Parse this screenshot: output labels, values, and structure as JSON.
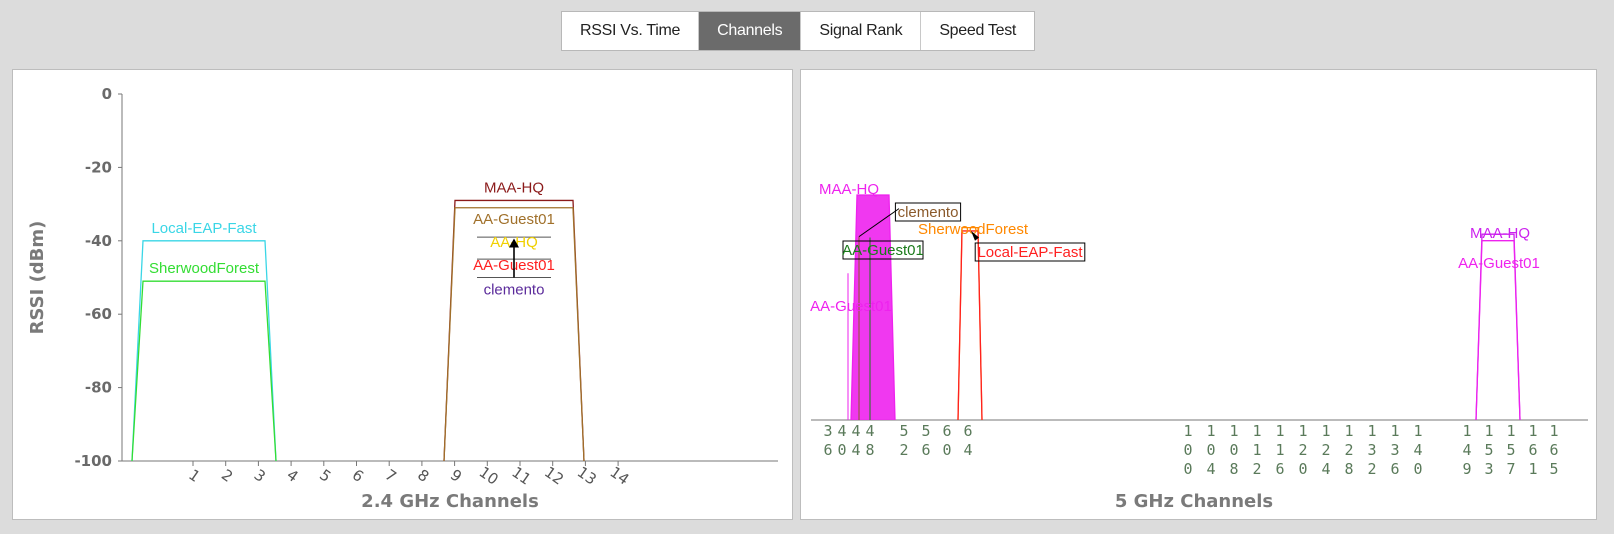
{
  "tabs": [
    {
      "label": "RSSI Vs. Time",
      "active": false
    },
    {
      "label": "Channels",
      "active": true
    },
    {
      "label": "Signal Rank",
      "active": false
    },
    {
      "label": "Speed Test",
      "active": false
    }
  ],
  "chart_data": [
    {
      "type": "area",
      "xlabel": "2.4 GHz Channels",
      "ylabel": "RSSI (dBm)",
      "ylim": [
        -100,
        0
      ],
      "y_ticks": [
        0,
        -20,
        -40,
        -60,
        -80,
        -100
      ],
      "x_ticks": [
        "1",
        "2",
        "3",
        "4",
        "5",
        "6",
        "7",
        "8",
        "9",
        "10",
        "11",
        "12",
        "13",
        "14"
      ],
      "networks": [
        {
          "name": "Local-EAP-Fast",
          "channel": 1,
          "rssi": -40,
          "color": "#3ad6e6"
        },
        {
          "name": "SherwoodForest",
          "channel": 1,
          "rssi": -51,
          "color": "#33dd33"
        },
        {
          "name": "MAA-HQ",
          "channel": 11,
          "rssi": -29,
          "color": "#8b1a1a"
        },
        {
          "name": "AA-Guest01",
          "channel": 11,
          "rssi": -31,
          "color": "#a0702a"
        },
        {
          "name": "AA-HQ",
          "channel": 11,
          "rssi": -39,
          "color": "#f0d000"
        },
        {
          "name": "AA-Guest01",
          "channel": 11,
          "rssi": -45,
          "color": "#ff2020"
        },
        {
          "name": "clemento",
          "channel": 11,
          "rssi": -50,
          "color": "#5b2b9b"
        }
      ]
    },
    {
      "type": "area",
      "xlabel": "5 GHz Channels",
      "ylim": [
        -100,
        0
      ],
      "channel_groups": [
        [
          "36",
          "40",
          "44",
          "48"
        ],
        [
          "52",
          "56",
          "60",
          "64"
        ],
        [
          "100",
          "104",
          "108",
          "112",
          "116",
          "120",
          "124",
          "128",
          "132",
          "136",
          "140"
        ],
        [
          "149",
          "153",
          "157",
          "161",
          "165"
        ]
      ],
      "networks": [
        {
          "name": "MAA-HQ",
          "channel": 44,
          "rssi": -31,
          "color": "#ee22ee",
          "filled": true
        },
        {
          "name": "AA-Guest01",
          "channel": 44,
          "rssi": -55,
          "color": "#ee22ee"
        },
        {
          "name": "clemento",
          "channel": 44,
          "rssi": -37,
          "color": "#8b5a2b"
        },
        {
          "name": "AA-Guest01",
          "channel": 44,
          "rssi": -44,
          "color": "#1a7a1a"
        },
        {
          "name": "SherwoodForest",
          "channel": 60,
          "rssi": -41,
          "color": "#ff8800"
        },
        {
          "name": "Local-EAP-Fast",
          "channel": 60,
          "rssi": -42,
          "color": "#ff2020"
        },
        {
          "name": "MAA-HQ",
          "channel": 157,
          "rssi": -43,
          "color": "#cc22ee"
        },
        {
          "name": "AA-Guest01",
          "channel": 157,
          "rssi": -45,
          "color": "#ee22ee"
        }
      ]
    }
  ]
}
